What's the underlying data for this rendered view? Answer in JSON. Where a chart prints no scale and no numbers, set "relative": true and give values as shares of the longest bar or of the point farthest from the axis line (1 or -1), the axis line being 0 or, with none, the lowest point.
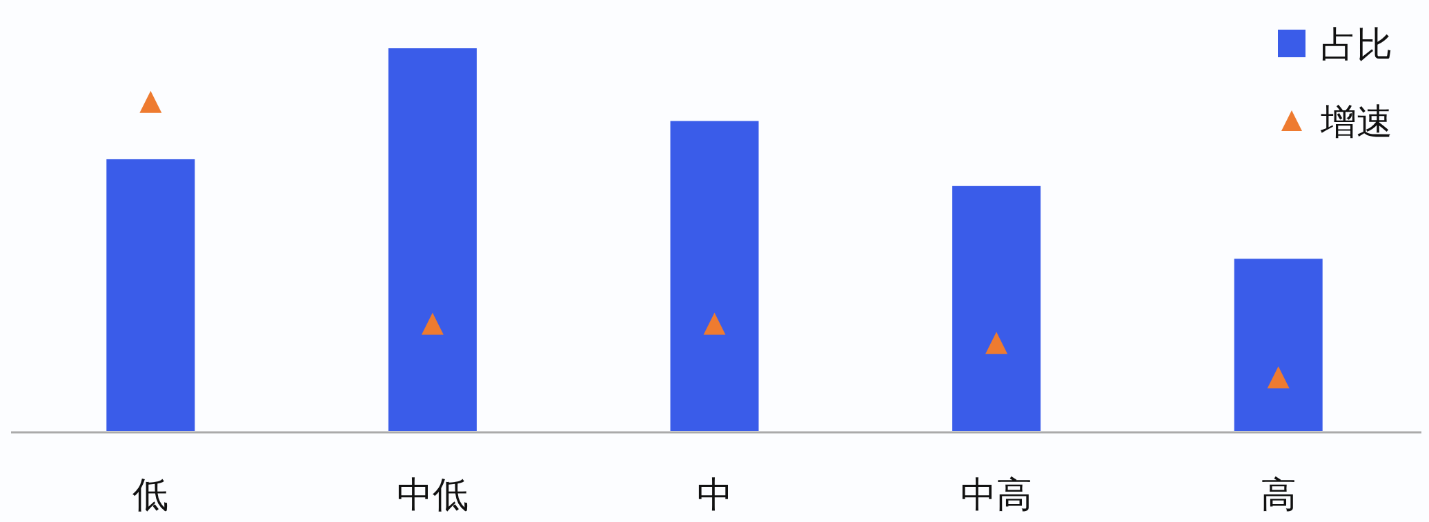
{
  "chart_data": {
    "type": "bar",
    "relative": true,
    "categories": [
      "低",
      "中低",
      "中",
      "中高",
      "高"
    ],
    "series": [
      {
        "name": "占比",
        "color": "#3a5ce9",
        "values": [
          0.71,
          1,
          0.81,
          0.64,
          0.45
        ]
      },
      {
        "name": "增速",
        "type": "scatter",
        "marker": "triangle",
        "color": "#ee7b30",
        "values": [
          0.86,
          0.28,
          0.28,
          0.23,
          0.14
        ]
      }
    ],
    "legend": "top right",
    "grid": false
  }
}
